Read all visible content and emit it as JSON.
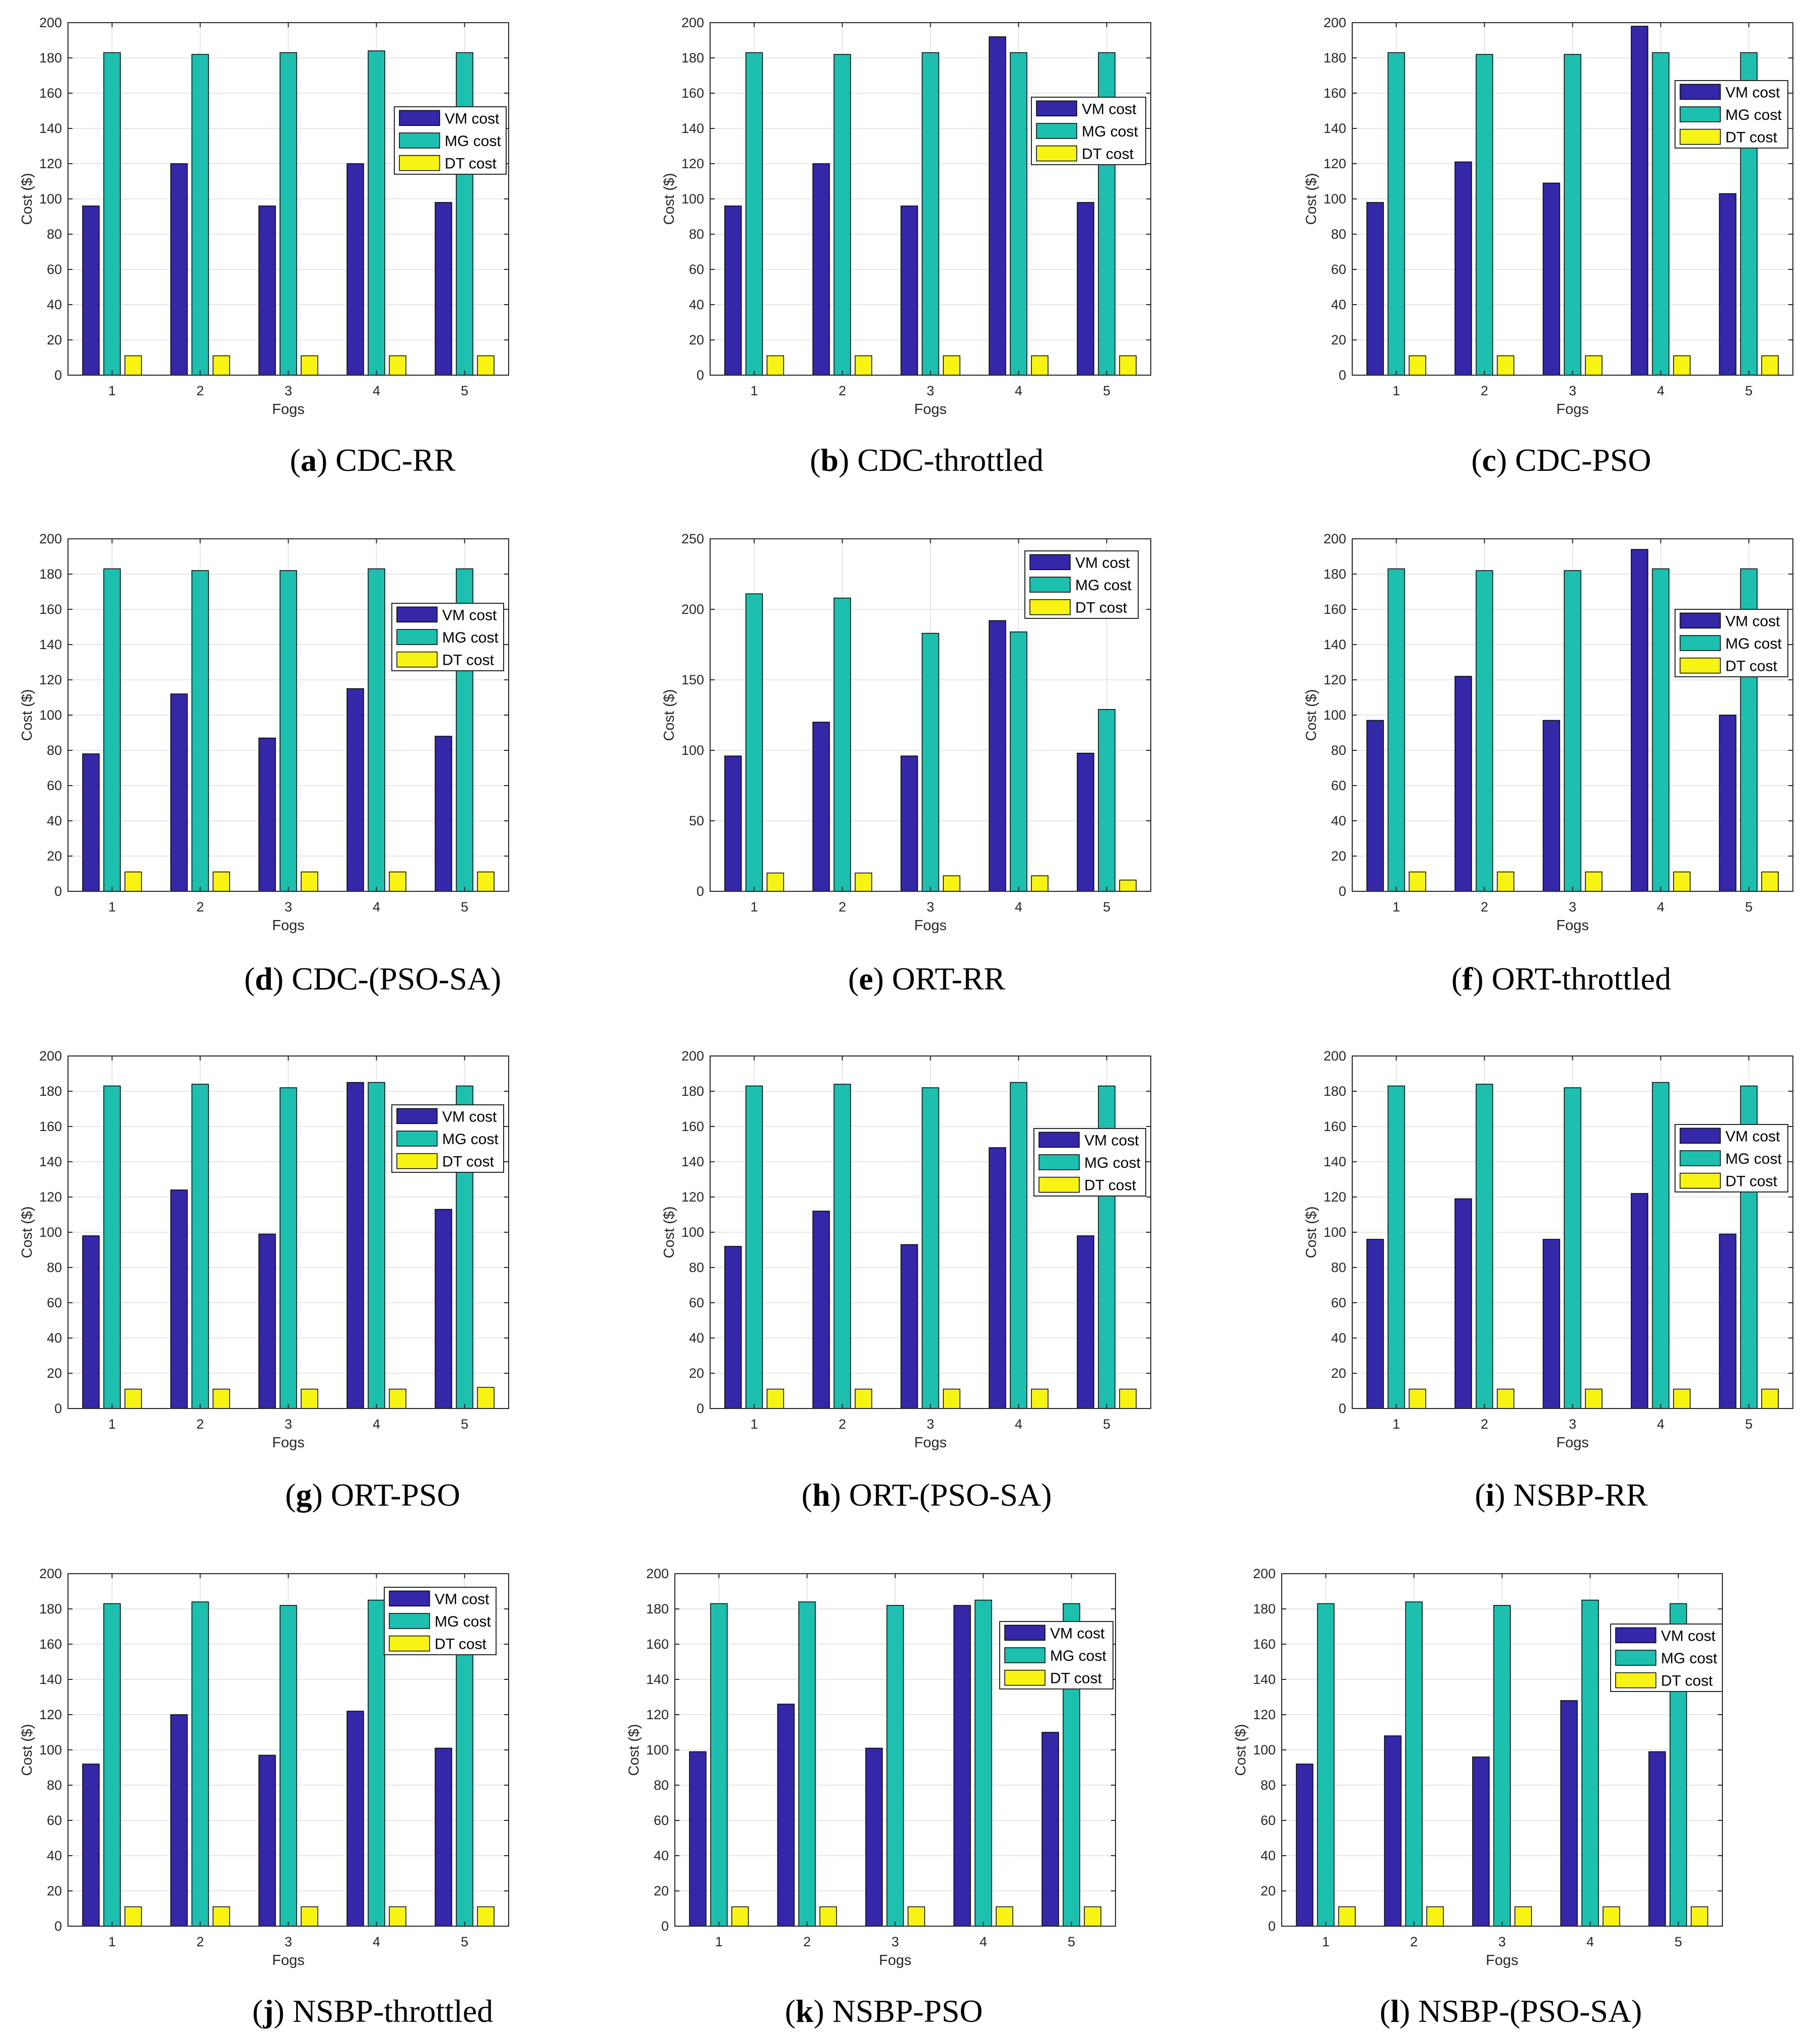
{
  "figure": {
    "colors": {
      "vm": "#3427A8",
      "mg": "#1DBFAF",
      "dt": "#F7F313",
      "axis": "#262626",
      "grid": "#E6E6E6"
    }
  },
  "chart_data": [
    {
      "type": "bar",
      "panel": "a",
      "caption": "CDC-RR",
      "categories": [
        "1",
        "2",
        "3",
        "4",
        "5"
      ],
      "xlabel": "Fogs",
      "ylabel": "Cost ($)",
      "ylim": [
        0,
        200
      ],
      "yticks": [
        0,
        20,
        40,
        60,
        80,
        100,
        120,
        140,
        160,
        180,
        200
      ],
      "legend_position": "right-upper",
      "grid": true,
      "series": [
        {
          "name": "VM cost",
          "color_key": "vm",
          "values": [
            96,
            120,
            96,
            120,
            98
          ]
        },
        {
          "name": "MG cost",
          "color_key": "mg",
          "values": [
            183,
            182,
            183,
            184,
            183
          ]
        },
        {
          "name": "DT cost",
          "color_key": "dt",
          "values": [
            11,
            11,
            11,
            11,
            11
          ]
        }
      ]
    },
    {
      "type": "bar",
      "panel": "b",
      "caption": "CDC-throttled",
      "categories": [
        "1",
        "2",
        "3",
        "4",
        "5"
      ],
      "xlabel": "Fogs",
      "ylabel": "Cost ($)",
      "ylim": [
        0,
        200
      ],
      "yticks": [
        0,
        20,
        40,
        60,
        80,
        100,
        120,
        140,
        160,
        180,
        200
      ],
      "legend_position": "right-upper",
      "grid": true,
      "series": [
        {
          "name": "VM cost",
          "color_key": "vm",
          "values": [
            96,
            120,
            96,
            192,
            98
          ]
        },
        {
          "name": "MG cost",
          "color_key": "mg",
          "values": [
            183,
            182,
            183,
            183,
            183
          ]
        },
        {
          "name": "DT cost",
          "color_key": "dt",
          "values": [
            11,
            11,
            11,
            11,
            11
          ]
        }
      ]
    },
    {
      "type": "bar",
      "panel": "c",
      "caption": "CDC-PSO",
      "categories": [
        "1",
        "2",
        "3",
        "4",
        "5"
      ],
      "xlabel": "Fogs",
      "ylabel": "Cost ($)",
      "ylim": [
        0,
        200
      ],
      "yticks": [
        0,
        20,
        40,
        60,
        80,
        100,
        120,
        140,
        160,
        180,
        200
      ],
      "legend_position": "top-right",
      "grid": true,
      "series": [
        {
          "name": "VM cost",
          "color_key": "vm",
          "values": [
            98,
            121,
            109,
            198,
            103
          ]
        },
        {
          "name": "MG cost",
          "color_key": "mg",
          "values": [
            183,
            182,
            182,
            183,
            183
          ]
        },
        {
          "name": "DT cost",
          "color_key": "dt",
          "values": [
            11,
            11,
            11,
            11,
            11
          ]
        }
      ]
    },
    {
      "type": "bar",
      "panel": "d",
      "caption": "CDC-(PSO-SA)",
      "categories": [
        "1",
        "2",
        "3",
        "4",
        "5"
      ],
      "xlabel": "Fogs",
      "ylabel": "Cost ($)",
      "ylim": [
        0,
        200
      ],
      "yticks": [
        0,
        20,
        40,
        60,
        80,
        100,
        120,
        140,
        160,
        180,
        200
      ],
      "legend_position": "right-upper",
      "grid": true,
      "series": [
        {
          "name": "VM cost",
          "color_key": "vm",
          "values": [
            78,
            112,
            87,
            115,
            88
          ]
        },
        {
          "name": "MG cost",
          "color_key": "mg",
          "values": [
            183,
            182,
            182,
            183,
            183
          ]
        },
        {
          "name": "DT cost",
          "color_key": "dt",
          "values": [
            11,
            11,
            11,
            11,
            11
          ]
        }
      ]
    },
    {
      "type": "bar",
      "panel": "e",
      "caption": "ORT-RR",
      "categories": [
        "1",
        "2",
        "3",
        "4",
        "5"
      ],
      "xlabel": "Fogs",
      "ylabel": "Cost ($)",
      "ylim": [
        0,
        250
      ],
      "yticks": [
        0,
        50,
        100,
        150,
        200,
        250
      ],
      "legend_position": "top-right",
      "grid": true,
      "series": [
        {
          "name": "VM cost",
          "color_key": "vm",
          "values": [
            96,
            120,
            96,
            192,
            98
          ]
        },
        {
          "name": "MG cost",
          "color_key": "mg",
          "values": [
            211,
            208,
            183,
            184,
            129
          ]
        },
        {
          "name": "DT cost",
          "color_key": "dt",
          "values": [
            13,
            13,
            11,
            11,
            8
          ]
        }
      ]
    },
    {
      "type": "bar",
      "panel": "f",
      "caption": "ORT-throttled",
      "categories": [
        "1",
        "2",
        "3",
        "4",
        "5"
      ],
      "xlabel": "Fogs",
      "ylabel": "Cost ($)",
      "ylim": [
        0,
        200
      ],
      "yticks": [
        0,
        20,
        40,
        60,
        80,
        100,
        120,
        140,
        160,
        180,
        200
      ],
      "legend_position": "right-upper",
      "grid": true,
      "series": [
        {
          "name": "VM cost",
          "color_key": "vm",
          "values": [
            97,
            122,
            97,
            194,
            100
          ]
        },
        {
          "name": "MG cost",
          "color_key": "mg",
          "values": [
            183,
            182,
            182,
            183,
            183
          ]
        },
        {
          "name": "DT cost",
          "color_key": "dt",
          "values": [
            11,
            11,
            11,
            11,
            11
          ]
        }
      ]
    },
    {
      "type": "bar",
      "panel": "g",
      "caption": "ORT-PSO",
      "categories": [
        "1",
        "2",
        "3",
        "4",
        "5"
      ],
      "xlabel": "Fogs",
      "ylabel": "Cost ($)",
      "ylim": [
        0,
        200
      ],
      "yticks": [
        0,
        20,
        40,
        60,
        80,
        100,
        120,
        140,
        160,
        180,
        200
      ],
      "legend_position": "right-upper",
      "grid": true,
      "series": [
        {
          "name": "VM cost",
          "color_key": "vm",
          "values": [
            98,
            124,
            99,
            185,
            113
          ]
        },
        {
          "name": "MG cost",
          "color_key": "mg",
          "values": [
            183,
            184,
            182,
            185,
            183
          ]
        },
        {
          "name": "DT cost",
          "color_key": "dt",
          "values": [
            11,
            11,
            11,
            11,
            12
          ]
        }
      ]
    },
    {
      "type": "bar",
      "panel": "h",
      "caption": "ORT-(PSO-SA)",
      "categories": [
        "1",
        "2",
        "3",
        "4",
        "5"
      ],
      "xlabel": "Fogs",
      "ylabel": "Cost ($)",
      "ylim": [
        0,
        200
      ],
      "yticks": [
        0,
        20,
        40,
        60,
        80,
        100,
        120,
        140,
        160,
        180,
        200
      ],
      "legend_position": "right-upper",
      "grid": true,
      "series": [
        {
          "name": "VM cost",
          "color_key": "vm",
          "values": [
            92,
            112,
            93,
            148,
            98
          ]
        },
        {
          "name": "MG cost",
          "color_key": "mg",
          "values": [
            183,
            184,
            182,
            185,
            183
          ]
        },
        {
          "name": "DT cost",
          "color_key": "dt",
          "values": [
            11,
            11,
            11,
            11,
            11
          ]
        }
      ]
    },
    {
      "type": "bar",
      "panel": "i",
      "caption": "NSBP-RR",
      "categories": [
        "1",
        "2",
        "3",
        "4",
        "5"
      ],
      "xlabel": "Fogs",
      "ylabel": "Cost ($)",
      "ylim": [
        0,
        200
      ],
      "yticks": [
        0,
        20,
        40,
        60,
        80,
        100,
        120,
        140,
        160,
        180,
        200
      ],
      "legend_position": "right-upper",
      "grid": true,
      "series": [
        {
          "name": "VM cost",
          "color_key": "vm",
          "values": [
            96,
            119,
            96,
            122,
            99
          ]
        },
        {
          "name": "MG cost",
          "color_key": "mg",
          "values": [
            183,
            184,
            182,
            185,
            183
          ]
        },
        {
          "name": "DT cost",
          "color_key": "dt",
          "values": [
            11,
            11,
            11,
            11,
            11
          ]
        }
      ]
    },
    {
      "type": "bar",
      "panel": "j",
      "caption": "NSBP-throttled",
      "categories": [
        "1",
        "2",
        "3",
        "4",
        "5"
      ],
      "xlabel": "Fogs",
      "ylabel": "Cost ($)",
      "ylim": [
        0,
        200
      ],
      "yticks": [
        0,
        20,
        40,
        60,
        80,
        100,
        120,
        140,
        160,
        180,
        200
      ],
      "legend_position": "top-right",
      "grid": true,
      "series": [
        {
          "name": "VM cost",
          "color_key": "vm",
          "values": [
            92,
            120,
            97,
            122,
            101
          ]
        },
        {
          "name": "MG cost",
          "color_key": "mg",
          "values": [
            183,
            184,
            182,
            185,
            183
          ]
        },
        {
          "name": "DT cost",
          "color_key": "dt",
          "values": [
            11,
            11,
            11,
            11,
            11
          ]
        }
      ]
    },
    {
      "type": "bar",
      "panel": "k",
      "caption": "NSBP-PSO",
      "categories": [
        "1",
        "2",
        "3",
        "4",
        "5"
      ],
      "xlabel": "Fogs",
      "ylabel": "Cost ($)",
      "ylim": [
        0,
        200
      ],
      "yticks": [
        0,
        20,
        40,
        60,
        80,
        100,
        120,
        140,
        160,
        180,
        200
      ],
      "legend_position": "top-right",
      "grid": true,
      "series": [
        {
          "name": "VM cost",
          "color_key": "vm",
          "values": [
            99,
            126,
            101,
            182,
            110
          ]
        },
        {
          "name": "MG cost",
          "color_key": "mg",
          "values": [
            183,
            184,
            182,
            185,
            183
          ]
        },
        {
          "name": "DT cost",
          "color_key": "dt",
          "values": [
            11,
            11,
            11,
            11,
            11
          ]
        }
      ]
    },
    {
      "type": "bar",
      "panel": "l",
      "caption": "NSBP-(PSO-SA)",
      "categories": [
        "1",
        "2",
        "3",
        "4",
        "5"
      ],
      "xlabel": "Fogs",
      "ylabel": "Cost ($)",
      "ylim": [
        0,
        200
      ],
      "yticks": [
        0,
        20,
        40,
        60,
        80,
        100,
        120,
        140,
        160,
        180,
        200
      ],
      "legend_position": "right-upper",
      "grid": true,
      "series": [
        {
          "name": "VM cost",
          "color_key": "vm",
          "values": [
            92,
            108,
            96,
            128,
            99
          ]
        },
        {
          "name": "MG cost",
          "color_key": "mg",
          "values": [
            183,
            184,
            182,
            185,
            183
          ]
        },
        {
          "name": "DT cost",
          "color_key": "dt",
          "values": [
            11,
            11,
            11,
            11,
            11
          ]
        }
      ]
    }
  ]
}
